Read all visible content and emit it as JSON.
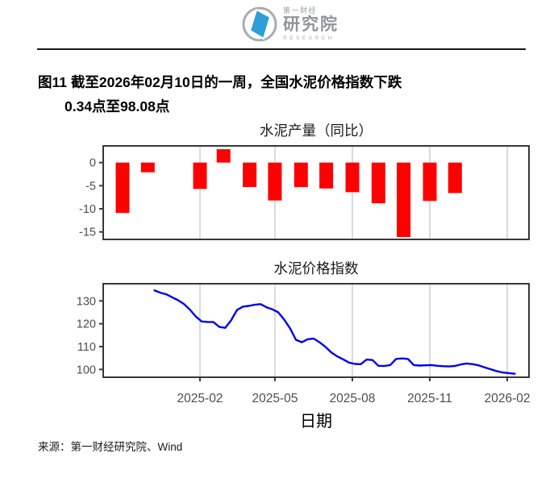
{
  "header": {
    "logo": {
      "brand_top": "第一财经",
      "brand_main": "研究院",
      "brand_sub": "RESEARCH"
    }
  },
  "caption": {
    "line1": "图11  截至2026年02月10日的一周，全国水泥价格指数下跌",
    "line2": "0.34点至98.08点"
  },
  "source": {
    "text": "来源：第一财经研究院、Wind"
  },
  "x_axis": {
    "title": "日期",
    "tick_labels": [
      "2025-02",
      "2025-05",
      "2025-08",
      "2025-11",
      "2026-02"
    ],
    "tick_dates": [
      "2025-02-01",
      "2025-05-01",
      "2025-08-01",
      "2025-11-01",
      "2026-02-01"
    ]
  },
  "colors": {
    "bar": "#FF0000",
    "line": "#0000EE",
    "axis_text": "#4D4D4D",
    "gridline": "#D5D5D5",
    "panel_border": "#383838",
    "logo_blue": "#2E9FD6",
    "logo_ring": "#A8ACB0"
  },
  "chart_data": [
    {
      "type": "bar",
      "title": "水泥产量（同比）",
      "xlabel": "日期",
      "ylabel": "",
      "categories": [
        "2024-11",
        "2024-12",
        "2025-01",
        "2025-02",
        "2025-03",
        "2025-04",
        "2025-05",
        "2025-06",
        "2025-07",
        "2025-08",
        "2025-09",
        "2025-10",
        "2025-11",
        "2025-12"
      ],
      "values": [
        -10.9,
        -2.1,
        null,
        -5.7,
        2.9,
        -5.3,
        -8.2,
        -5.3,
        -5.6,
        -6.4,
        -8.8,
        -16.1,
        -8.3,
        -6.6
      ],
      "yticks": [
        0,
        -5,
        -10,
        -15
      ],
      "ylim": [
        -16.6,
        3.6
      ],
      "grid": "vertical-only",
      "legend": "none"
    },
    {
      "type": "line",
      "title": "水泥价格指数",
      "xlabel": "日期",
      "ylabel": "",
      "x": [
        "2024-12-09",
        "2024-12-16",
        "2024-12-23",
        "2024-12-30",
        "2025-01-06",
        "2025-01-13",
        "2025-01-20",
        "2025-01-27",
        "2025-02-03",
        "2025-02-10",
        "2025-02-17",
        "2025-02-24",
        "2025-03-03",
        "2025-03-10",
        "2025-03-17",
        "2025-03-24",
        "2025-03-31",
        "2025-04-07",
        "2025-04-14",
        "2025-04-21",
        "2025-04-28",
        "2025-05-05",
        "2025-05-12",
        "2025-05-19",
        "2025-05-26",
        "2025-06-02",
        "2025-06-09",
        "2025-06-16",
        "2025-06-23",
        "2025-06-30",
        "2025-07-07",
        "2025-07-14",
        "2025-07-21",
        "2025-07-28",
        "2025-08-04",
        "2025-08-11",
        "2025-08-18",
        "2025-08-25",
        "2025-09-01",
        "2025-09-08",
        "2025-09-15",
        "2025-09-22",
        "2025-09-29",
        "2025-10-06",
        "2025-10-13",
        "2025-10-20",
        "2025-10-27",
        "2025-11-03",
        "2025-11-10",
        "2025-11-17",
        "2025-11-24",
        "2025-12-01",
        "2025-12-08",
        "2025-12-15",
        "2025-12-22",
        "2025-12-29",
        "2026-01-05",
        "2026-01-12",
        "2026-01-19",
        "2026-01-26",
        "2026-02-02",
        "2026-02-10"
      ],
      "values": [
        134.6,
        133.6,
        132.9,
        131.6,
        130.3,
        128.6,
        126.2,
        123.2,
        121.0,
        120.8,
        120.7,
        118.6,
        118.2,
        121.5,
        126.0,
        127.5,
        127.8,
        128.3,
        128.6,
        127.2,
        126.3,
        125.0,
        121.8,
        118.0,
        113.0,
        111.9,
        113.2,
        113.5,
        111.9,
        109.9,
        107.4,
        105.7,
        104.4,
        103.0,
        102.4,
        102.3,
        104.3,
        104.1,
        101.6,
        101.5,
        101.9,
        104.6,
        104.8,
        104.6,
        101.9,
        101.7,
        101.8,
        101.9,
        101.6,
        101.4,
        101.3,
        101.5,
        102.2,
        102.6,
        102.3,
        101.8,
        100.9,
        100.1,
        99.3,
        98.7,
        98.42,
        98.08
      ],
      "yticks": [
        130,
        120,
        110,
        100
      ],
      "ylim": [
        96.6,
        137.5
      ],
      "grid": "vertical-only",
      "legend": "none",
      "last_value_note": "98.08"
    }
  ]
}
